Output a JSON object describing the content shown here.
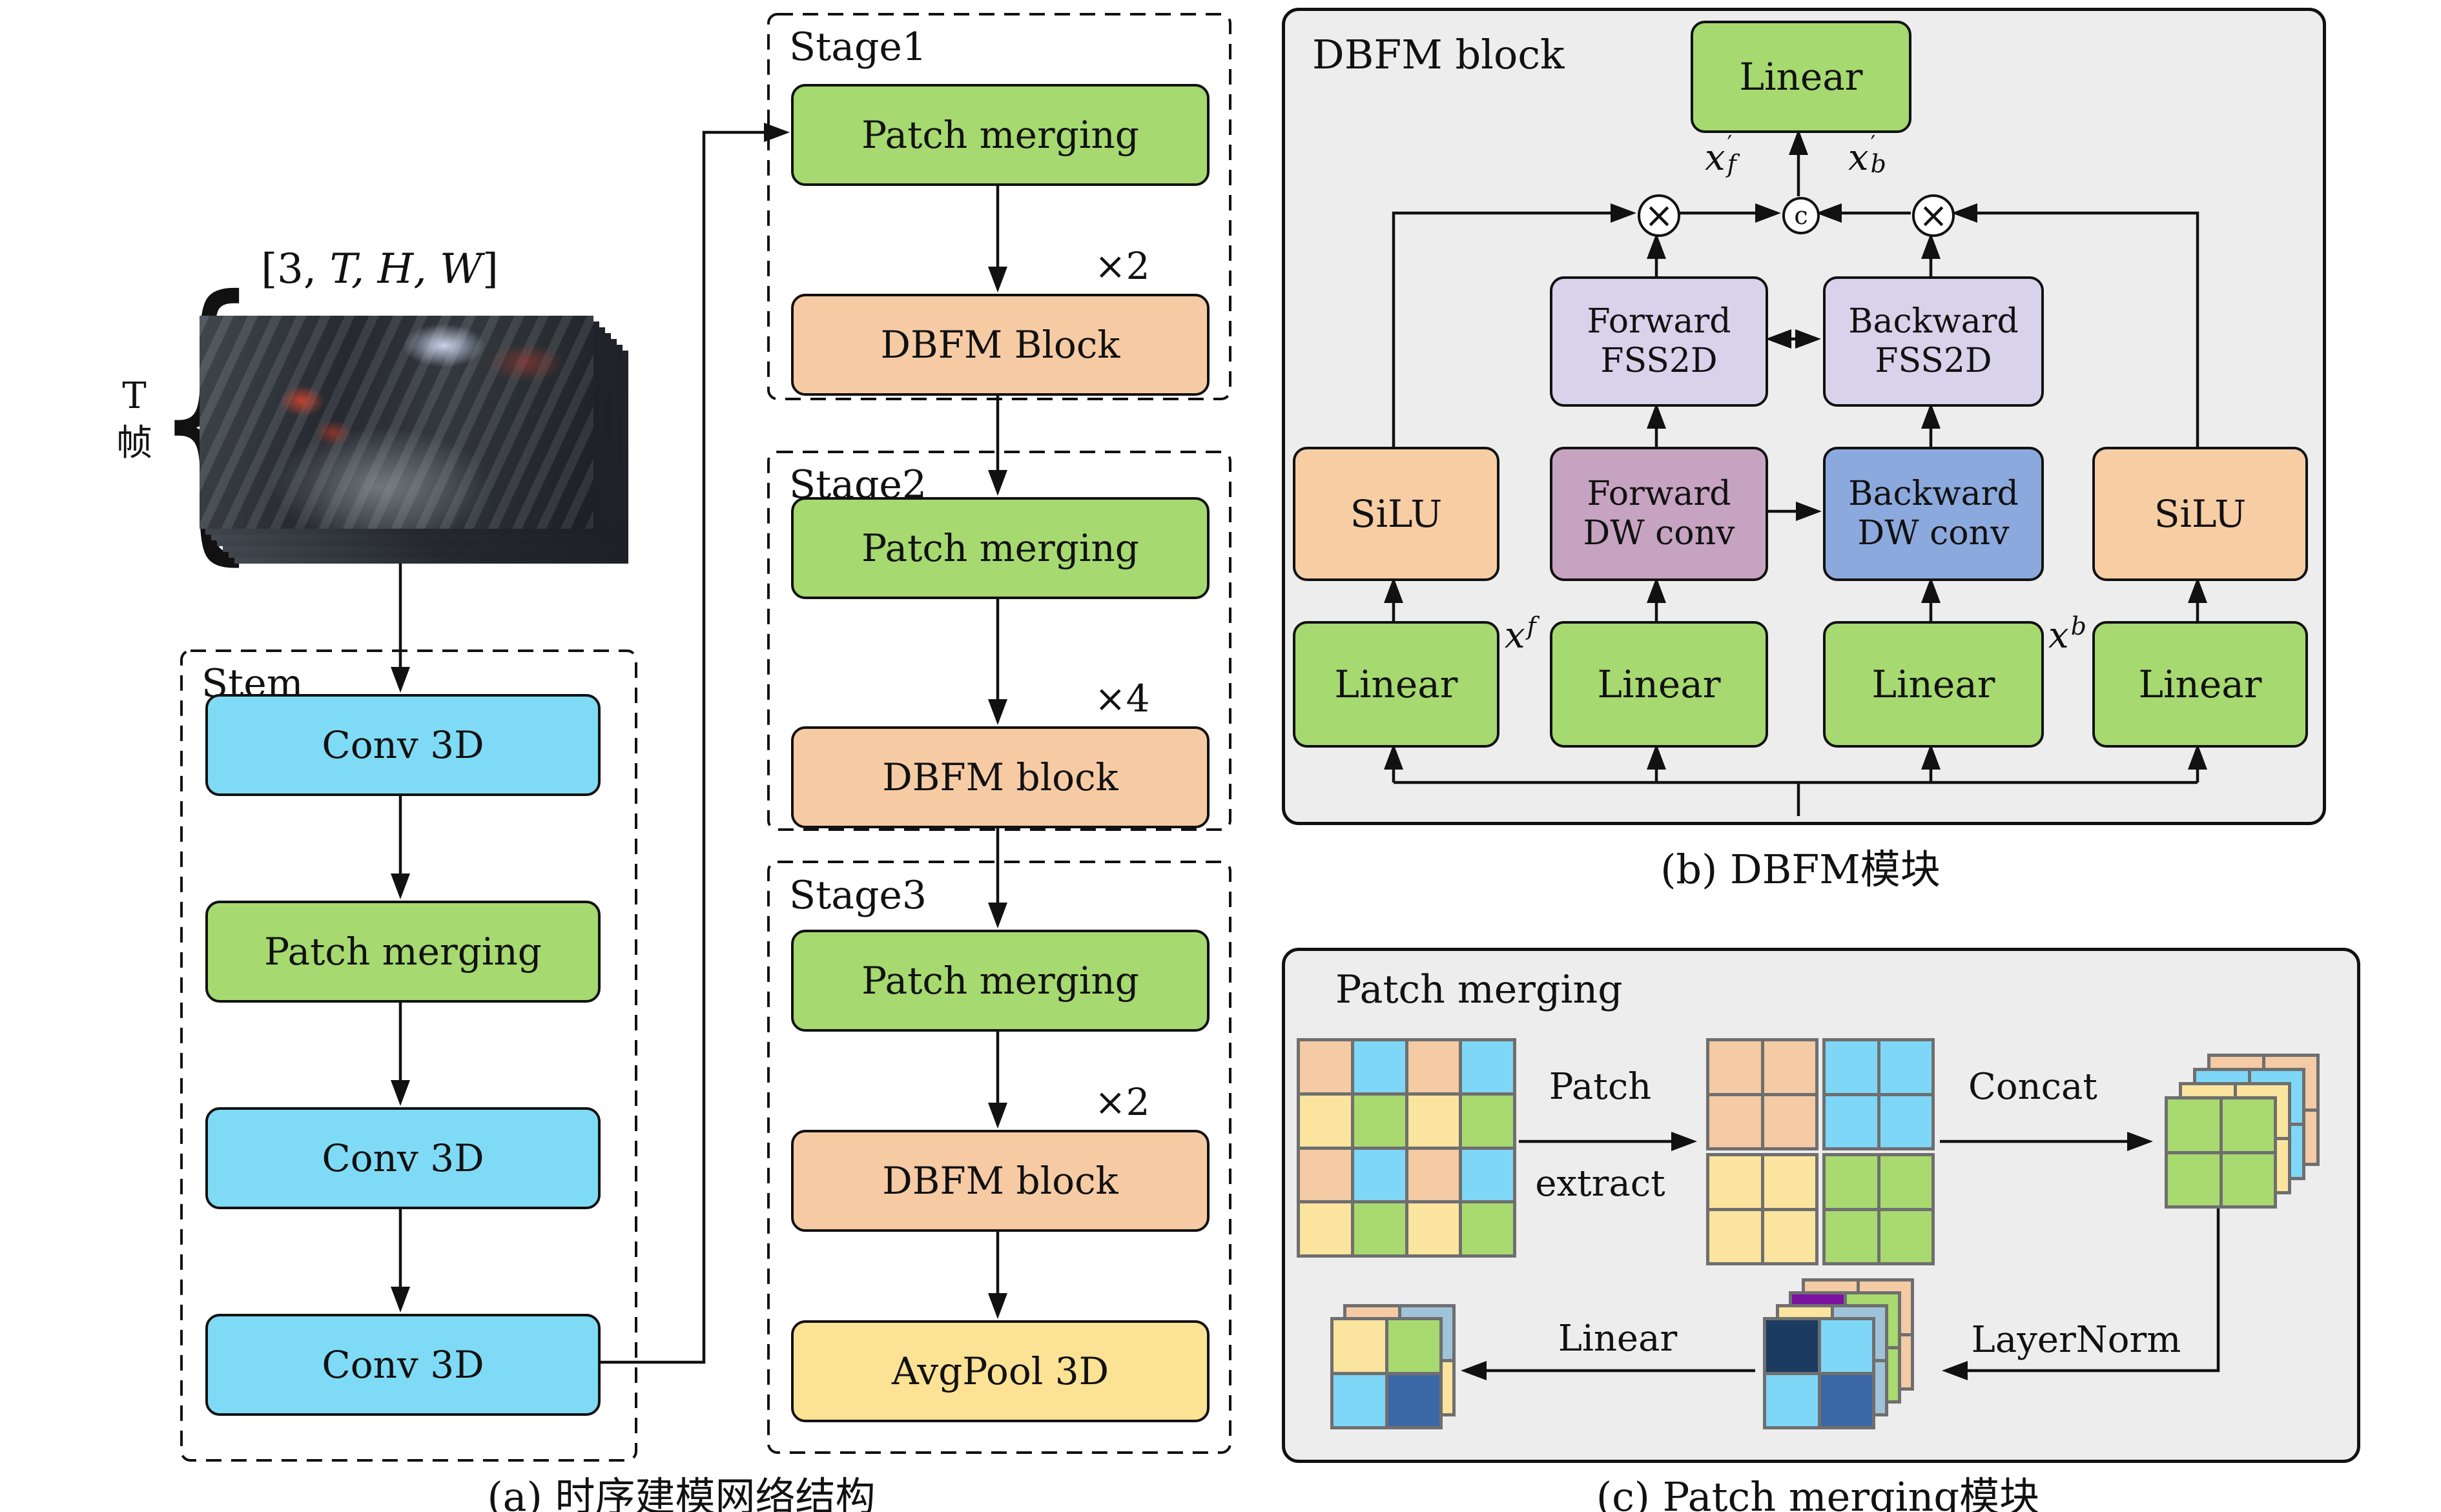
{
  "palette": {
    "box_cyan": "#7FDBF5",
    "box_green": "#A6D96F",
    "box_orange": "#F6CBA4",
    "box_yellow": "#FBE294",
    "box_lavender": "#D8D3EA",
    "box_mauve": "#C6A3C1",
    "box_blue": "#8CA9DD",
    "box_peach": "#F7CDA4",
    "panel_bg": "#EDEDED",
    "peach": "#F4CBA4",
    "cyan": "#7ED7F6",
    "yellow": "#FBE49E",
    "green": "#A8DA70",
    "navy": "#1B3B60",
    "steel": "#3A67A5",
    "sky": "#7ED7F6",
    "mblue": "#9FC3D8",
    "purple": "#7C12A1"
  },
  "panel_a": {
    "tensor_label": {
      "pre": "[3, ",
      "vars": "T, H, W",
      "post": "]"
    },
    "brace": "{",
    "frames_label": {
      "line1": "T",
      "line2": "帧"
    },
    "stem": {
      "title": "Stem",
      "boxes": [
        "Conv 3D",
        "Patch merging",
        "Conv 3D",
        "Conv 3D"
      ]
    },
    "stages": [
      {
        "title": "Stage1",
        "merge": "Patch merging",
        "mult": "×2",
        "block": "DBFM Block"
      },
      {
        "title": "Stage2",
        "merge": "Patch merging",
        "mult": "×4",
        "block": "DBFM block"
      },
      {
        "title": "Stage3",
        "merge": "Patch merging",
        "mult": "×2",
        "block": "DBFM block",
        "pool": "AvgPool 3D"
      }
    ],
    "caption": "(a) 时序建模网络结构"
  },
  "panel_b": {
    "title": "DBFM block",
    "top_linear": "Linear",
    "times": "×",
    "concat": "c",
    "out_f": {
      "base": "x",
      "prime": "′",
      "sub": "f"
    },
    "out_b": {
      "base": "x",
      "prime": "′",
      "sub": "b"
    },
    "in_f": {
      "base": "x",
      "sub": "f"
    },
    "in_b": {
      "base": "x",
      "sub": "b"
    },
    "fss_f": {
      "l1": "Forward",
      "l2": "FSS2D"
    },
    "fss_b": {
      "l1": "Backward",
      "l2": "FSS2D"
    },
    "dw_f": {
      "l1": "Forward",
      "l2": "DW conv"
    },
    "dw_b": {
      "l1": "Backward",
      "l2": "DW conv"
    },
    "silu": "SiLU",
    "linears": [
      "Linear",
      "Linear",
      "Linear",
      "Linear"
    ],
    "caption": "(b) DBFM模块"
  },
  "panel_c": {
    "title": "Patch merging",
    "patch_extract": {
      "l1": "Patch",
      "l2": "extract"
    },
    "concat_label": "Concat",
    "layernorm_label": "LayerNorm",
    "linear_label": "Linear",
    "caption": "(c) Patch merging模块",
    "input_grid": [
      [
        "peach",
        "cyan",
        "peach",
        "cyan"
      ],
      [
        "yellow",
        "green",
        "yellow",
        "green"
      ],
      [
        "peach",
        "cyan",
        "peach",
        "cyan"
      ],
      [
        "yellow",
        "green",
        "yellow",
        "green"
      ]
    ],
    "extract_grids": {
      "peach": [
        [
          "peach",
          "peach"
        ],
        [
          "peach",
          "peach"
        ]
      ],
      "cyan": [
        [
          "cyan",
          "cyan"
        ],
        [
          "cyan",
          "cyan"
        ]
      ],
      "yellow": [
        [
          "yellow",
          "yellow"
        ],
        [
          "yellow",
          "yellow"
        ]
      ],
      "green": [
        [
          "green",
          "green"
        ],
        [
          "green",
          "green"
        ]
      ]
    },
    "concat_stack": {
      "back": [
        [
          "peach",
          "peach"
        ],
        [
          "peach",
          "peach"
        ]
      ],
      "l2": [
        [
          "cyan",
          "cyan"
        ],
        [
          "cyan",
          "cyan"
        ]
      ],
      "l3": [
        [
          "yellow",
          "yellow"
        ],
        [
          "yellow",
          "yellow"
        ]
      ],
      "front": [
        [
          "green",
          "green"
        ],
        [
          "green",
          "green"
        ]
      ]
    },
    "ln_stack": {
      "back": [
        [
          "peach",
          "peach"
        ],
        [
          "peach",
          "peach"
        ]
      ],
      "l2": [
        [
          "purple",
          "green"
        ],
        [
          "green",
          "green"
        ]
      ],
      "l3": [
        [
          "yellow",
          "mblue"
        ],
        [
          "yellow",
          "mblue"
        ]
      ],
      "front": [
        [
          "navy",
          "sky"
        ],
        [
          "sky",
          "steel"
        ]
      ]
    },
    "out_stack": {
      "back": [
        [
          "peach",
          "mblue"
        ],
        [
          "yellow",
          "yellow"
        ]
      ],
      "front": [
        [
          "yellow",
          "green"
        ],
        [
          "sky",
          "steel"
        ]
      ]
    }
  }
}
